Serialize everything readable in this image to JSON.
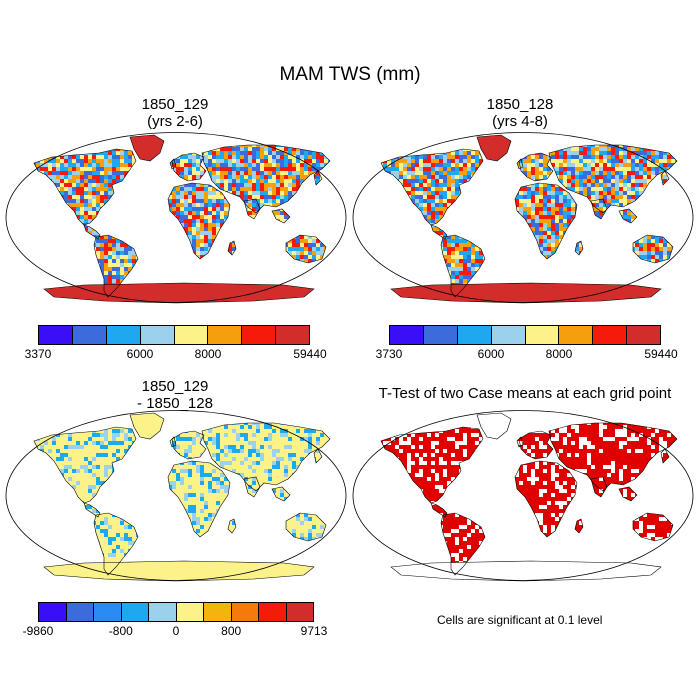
{
  "figure": {
    "title": "MAM TWS (mm)"
  },
  "panels": [
    {
      "id": "p1",
      "title_line1": "1850_129",
      "title_line2": "(yrs 2-6)",
      "colorbar_colors": [
        "#3a0ff7",
        "#3c6cdc",
        "#1ea8ef",
        "#9cd1ec",
        "#fbf289",
        "#f59f0c",
        "#f61a0a",
        "#d32d2b"
      ],
      "colorbar_labels": [
        {
          "text": "3370",
          "at": 0
        },
        {
          "text": "6000",
          "at": 3
        },
        {
          "text": "8000",
          "at": 5
        },
        {
          "text": "59440",
          "at": 8
        }
      ],
      "palette": [
        "#1ea8ef",
        "#9cd1ec",
        "#fbf289",
        "#f59f0c",
        "#3c6cdc",
        "#f61a0a"
      ],
      "antarctica_color": "#d32d2b",
      "greenland_color": "#d32d2b"
    },
    {
      "id": "p2",
      "title_line1": "1850_128",
      "title_line2": "(yrs 4-8)",
      "colorbar_colors": [
        "#3a0ff7",
        "#3c6cdc",
        "#1ea8ef",
        "#9cd1ec",
        "#fbf289",
        "#f59f0c",
        "#f61a0a",
        "#d32d2b"
      ],
      "colorbar_labels": [
        {
          "text": "3730",
          "at": 0
        },
        {
          "text": "6000",
          "at": 3
        },
        {
          "text": "8000",
          "at": 5
        },
        {
          "text": "59440",
          "at": 8
        }
      ],
      "palette": [
        "#1ea8ef",
        "#9cd1ec",
        "#fbf289",
        "#f59f0c",
        "#3c6cdc",
        "#f61a0a"
      ],
      "antarctica_color": "#d32d2b",
      "greenland_color": "#d32d2b"
    },
    {
      "id": "p3",
      "title_line1": "1850_129",
      "title_line2": "- 1850_128",
      "colorbar_colors": [
        "#3a0ff7",
        "#3c6cdc",
        "#2a8cf0",
        "#1ea8ef",
        "#9cd1ec",
        "#fbf289",
        "#f5b40c",
        "#f47b0a",
        "#f61a0a",
        "#d32d2b"
      ],
      "colorbar_labels": [
        {
          "text": "-9860",
          "at": 0
        },
        {
          "text": "-800",
          "at": 3
        },
        {
          "text": "0",
          "at": 5
        },
        {
          "text": "800",
          "at": 7
        },
        {
          "text": "9713",
          "at": 10
        }
      ],
      "palette": [
        "#fbf289",
        "#fbf289",
        "#fbf289",
        "#9cd1ec",
        "#fbf289",
        "#1ea8ef"
      ],
      "antarctica_color": "#fbf289",
      "greenland_color": "#fbf289"
    },
    {
      "id": "p4",
      "title_line1": "T-Test of two Case means at each grid point",
      "title_line2": "",
      "note": "Cells are significant at 0.1 level",
      "palette": [
        "#e00000",
        "#e00000",
        "#ffffff",
        "#e00000"
      ],
      "antarctica_color": "#ffffff",
      "greenland_color": "#ffffff"
    }
  ]
}
